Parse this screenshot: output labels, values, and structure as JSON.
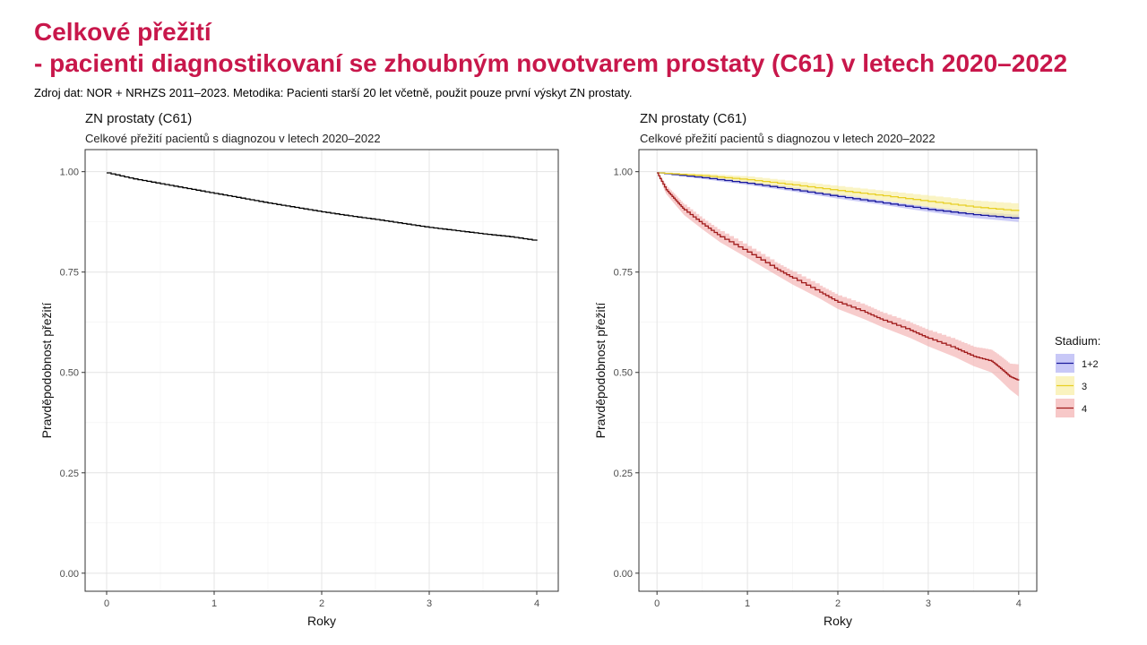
{
  "slide": {
    "title": "Celkové přežití",
    "subtitle": "- pacienti diagnostikovaní se zhoubným novotvarem prostaty (C61) v letech 2020–2022",
    "source_note": "Zdroj dat: NOR + NRHZS 2011–2023. Metodika: Pacienti starší 20 let včetně, použit pouze první výskyt ZN prostaty."
  },
  "chart_data": [
    {
      "type": "line",
      "title": "ZN prostaty (C61)",
      "subtitle": "Celkové přežití pacientů s diagnozou v letech 2020–2022",
      "xlabel": "Roky",
      "ylabel": "Pravděpodobnost přežití",
      "xlim": [
        -0.2,
        4.2
      ],
      "ylim": [
        -0.045,
        1.055
      ],
      "x_ticks": [
        0,
        1,
        2,
        3,
        4
      ],
      "y_ticks": [
        0.0,
        0.25,
        0.5,
        0.75,
        1.0
      ],
      "y_tick_labels": [
        "0.00",
        "0.25",
        "0.50",
        "0.75",
        "1.00"
      ],
      "grid": true,
      "series": [
        {
          "color": "#000000",
          "x": [
            0,
            0.25,
            0.5,
            0.75,
            1.0,
            1.25,
            1.5,
            1.75,
            2.0,
            2.25,
            2.5,
            2.75,
            3.0,
            3.25,
            3.5,
            3.75,
            4.0
          ],
          "y": [
            0.997,
            0.982,
            0.97,
            0.958,
            0.946,
            0.934,
            0.922,
            0.911,
            0.9,
            0.89,
            0.881,
            0.871,
            0.861,
            0.853,
            0.845,
            0.838,
            0.828
          ]
        }
      ]
    },
    {
      "type": "line",
      "title": "ZN prostaty (C61)",
      "subtitle": "Celkové přežití pacientů s diagnozou v letech 2020–2022",
      "xlabel": "Roky",
      "ylabel": "Pravděpodobnost přežití",
      "xlim": [
        -0.2,
        4.2
      ],
      "ylim": [
        -0.045,
        1.055
      ],
      "x_ticks": [
        0,
        1,
        2,
        3,
        4
      ],
      "y_ticks": [
        0.0,
        0.25,
        0.5,
        0.75,
        1.0
      ],
      "y_tick_labels": [
        "0.00",
        "0.25",
        "0.50",
        "0.75",
        "1.00"
      ],
      "grid": true,
      "legend_title": "Stadium:",
      "legend_position": "right",
      "series": [
        {
          "name": "1+2",
          "color": "#1a1a9c",
          "fill": "#aaaaf2",
          "x": [
            0,
            0.5,
            1.0,
            1.5,
            2.0,
            2.5,
            3.0,
            3.5,
            4.0
          ],
          "y": [
            0.997,
            0.985,
            0.971,
            0.955,
            0.938,
            0.922,
            0.906,
            0.893,
            0.883
          ],
          "lower": [
            0.997,
            0.982,
            0.967,
            0.951,
            0.933,
            0.917,
            0.9,
            0.885,
            0.875
          ],
          "upper": [
            0.997,
            0.988,
            0.975,
            0.96,
            0.943,
            0.927,
            0.912,
            0.9,
            0.892
          ]
        },
        {
          "name": "3",
          "color": "#e8cf24",
          "fill": "#f7ec9c",
          "x": [
            0,
            0.5,
            1.0,
            1.5,
            2.0,
            2.5,
            3.0,
            3.5,
            4.0
          ],
          "y": [
            0.997,
            0.99,
            0.98,
            0.967,
            0.953,
            0.94,
            0.926,
            0.912,
            0.902
          ],
          "lower": [
            0.997,
            0.985,
            0.972,
            0.958,
            0.942,
            0.928,
            0.912,
            0.896,
            0.884
          ],
          "upper": [
            0.997,
            0.995,
            0.988,
            0.976,
            0.964,
            0.952,
            0.94,
            0.928,
            0.92
          ]
        },
        {
          "name": "4",
          "color": "#a11c1c",
          "fill": "#f2aaaa",
          "x": [
            0,
            0.1,
            0.2,
            0.3,
            0.5,
            0.7,
            1.0,
            1.3,
            1.5,
            1.8,
            2.0,
            2.3,
            2.5,
            2.8,
            3.0,
            3.3,
            3.5,
            3.7,
            3.8,
            3.9,
            4.0
          ],
          "y": [
            0.997,
            0.955,
            0.93,
            0.905,
            0.87,
            0.838,
            0.8,
            0.76,
            0.735,
            0.7,
            0.675,
            0.65,
            0.63,
            0.605,
            0.585,
            0.56,
            0.54,
            0.528,
            0.51,
            0.49,
            0.48
          ],
          "lower": [
            0.997,
            0.945,
            0.918,
            0.892,
            0.857,
            0.824,
            0.785,
            0.745,
            0.719,
            0.684,
            0.658,
            0.632,
            0.612,
            0.586,
            0.565,
            0.538,
            0.516,
            0.5,
            0.48,
            0.458,
            0.44
          ],
          "upper": [
            0.997,
            0.965,
            0.942,
            0.918,
            0.883,
            0.852,
            0.815,
            0.775,
            0.751,
            0.716,
            0.692,
            0.668,
            0.648,
            0.624,
            0.605,
            0.582,
            0.564,
            0.556,
            0.54,
            0.522,
            0.52
          ]
        }
      ]
    }
  ]
}
